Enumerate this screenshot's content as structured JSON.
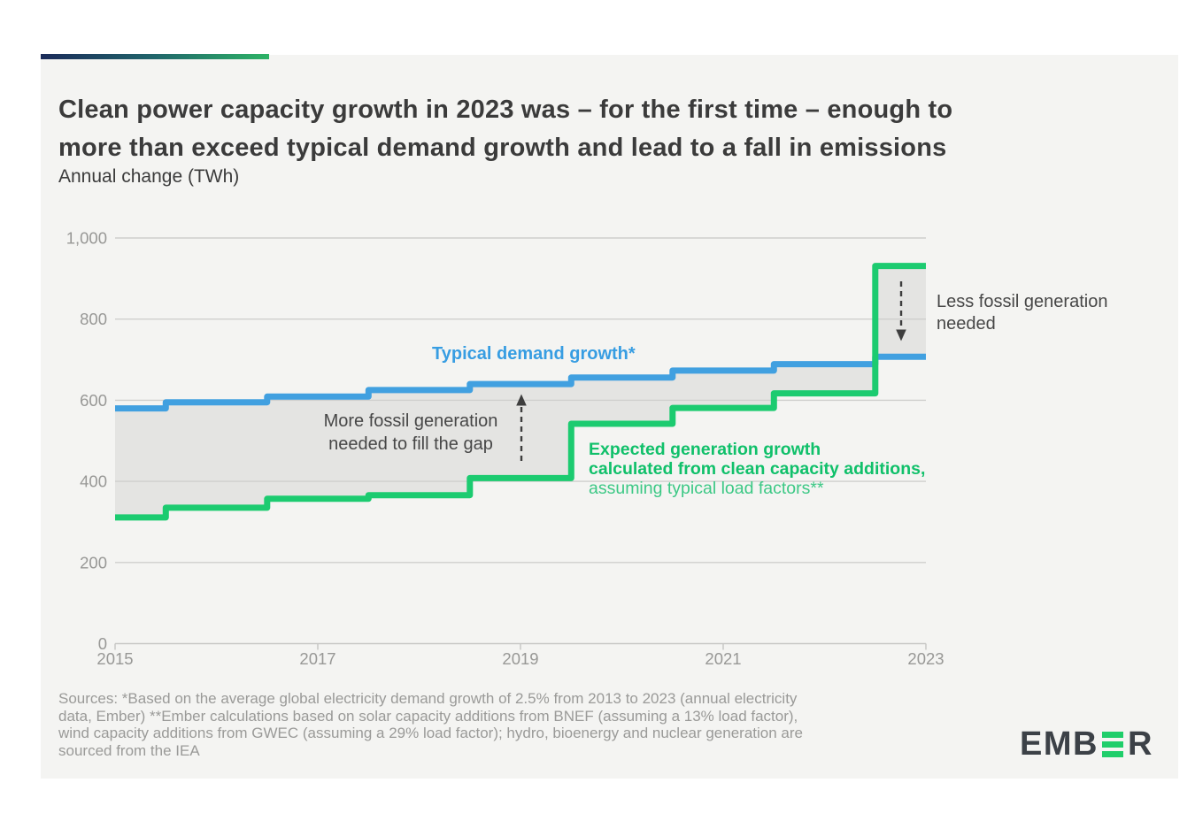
{
  "header": {
    "title_line1": "Clean power capacity growth in 2023 was – for the first time – enough to",
    "title_line2": "more than exceed typical demand growth and lead to a fall in emissions",
    "subtitle": "Annual change (TWh)"
  },
  "chart_data": {
    "type": "line",
    "style": "step",
    "title": "Clean power capacity growth in 2023 was – for the first time – enough to more than exceed typical demand growth and lead to a fall in emissions",
    "ylabel": "Annual change (TWh)",
    "xlabel": "",
    "grid": true,
    "ylim": [
      0,
      1000
    ],
    "x": [
      2015,
      2016,
      2017,
      2018,
      2019,
      2020,
      2021,
      2022,
      2023
    ],
    "series": [
      {
        "name": "Typical demand growth*",
        "color": "#41a0e0",
        "values": [
          580,
          595,
          609,
          625,
          640,
          656,
          673,
          689,
          707
        ]
      },
      {
        "name": "Expected generation growth calculated from clean capacity additions, assuming typical load factors**",
        "color": "#1ccb70",
        "values": [
          311,
          335,
          357,
          366,
          408,
          542,
          581,
          617,
          931
        ]
      }
    ],
    "fill_between_color": "#e4e4e2",
    "y_ticks": [
      {
        "label": "1,000",
        "value": 1000
      },
      {
        "label": "800",
        "value": 800
      },
      {
        "label": "600",
        "value": 600
      },
      {
        "label": "400",
        "value": 400
      },
      {
        "label": "200",
        "value": 200
      },
      {
        "label": "0",
        "value": 0
      }
    ],
    "x_ticks": [
      {
        "label": "2015",
        "year": 2015
      },
      {
        "label": "2017",
        "year": 2017
      },
      {
        "label": "2019",
        "year": 2019
      },
      {
        "label": "2021",
        "year": 2021
      },
      {
        "label": "2023",
        "year": 2023
      }
    ]
  },
  "annotations": {
    "demand_label": "Typical demand growth*",
    "more_fossil_line1": "More fossil generation",
    "more_fossil_line2": "needed to fill the gap",
    "expected_bold1": "Expected generation growth",
    "expected_bold2": "calculated from clean capacity additions,",
    "expected_regular": "assuming typical load factors**",
    "less_fossil_line1": "Less fossil generation",
    "less_fossil_line2": "needed"
  },
  "footer": {
    "sources_line1": "Sources: *Based on the average global electricity demand growth of 2.5% from 2013 to 2023 (annual electricity",
    "sources_line2": "data, Ember) **Ember calculations based on solar capacity additions from BNEF (assuming a 13% load factor),",
    "sources_line3": "wind capacity additions from GWEC (assuming a 29% load factor); hydro, bioenergy and nuclear generation are",
    "sources_line4": "sourced from the IEA",
    "logo_prefix": "EMB",
    "logo_suffix": "R"
  },
  "colors": {
    "accent_gradient_start": "#1b2b5a",
    "accent_gradient_end": "#2db366",
    "card_background": "#f4f4f2",
    "gridline": "#cfcfcd",
    "axis": "#c8c8c6",
    "tick_text": "#989896",
    "annotation_dark": "#474747",
    "logo_green": "#1fce6a"
  }
}
